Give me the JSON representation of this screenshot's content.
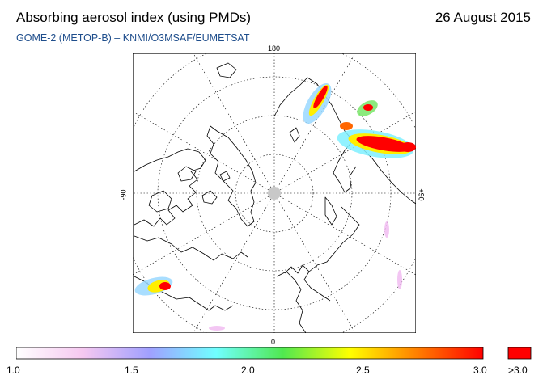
{
  "header": {
    "title": "Absorbing aerosol index (using PMDs)",
    "date": "26 August 2015",
    "subtitle": "GOME-2 (METOP-B)  –  KNMI/O3MSAF/EUMETSAT"
  },
  "map": {
    "projection": "north-polar-stereographic",
    "longitude_labels": {
      "top": "180",
      "bottom": "0",
      "left": "-90",
      "right": "+90"
    }
  },
  "legend": {
    "ticks": [
      "1.0",
      "1.5",
      "2.0",
      "2.5",
      "3.0"
    ],
    "overflow_label": ">3.0",
    "overflow_color": "#ff0000",
    "gradient_colors": [
      "#ffffff",
      "#f5c8f0",
      "#a0a0ff",
      "#70ffff",
      "#50e850",
      "#ffff00",
      "#ff8000",
      "#ff0000"
    ]
  }
}
